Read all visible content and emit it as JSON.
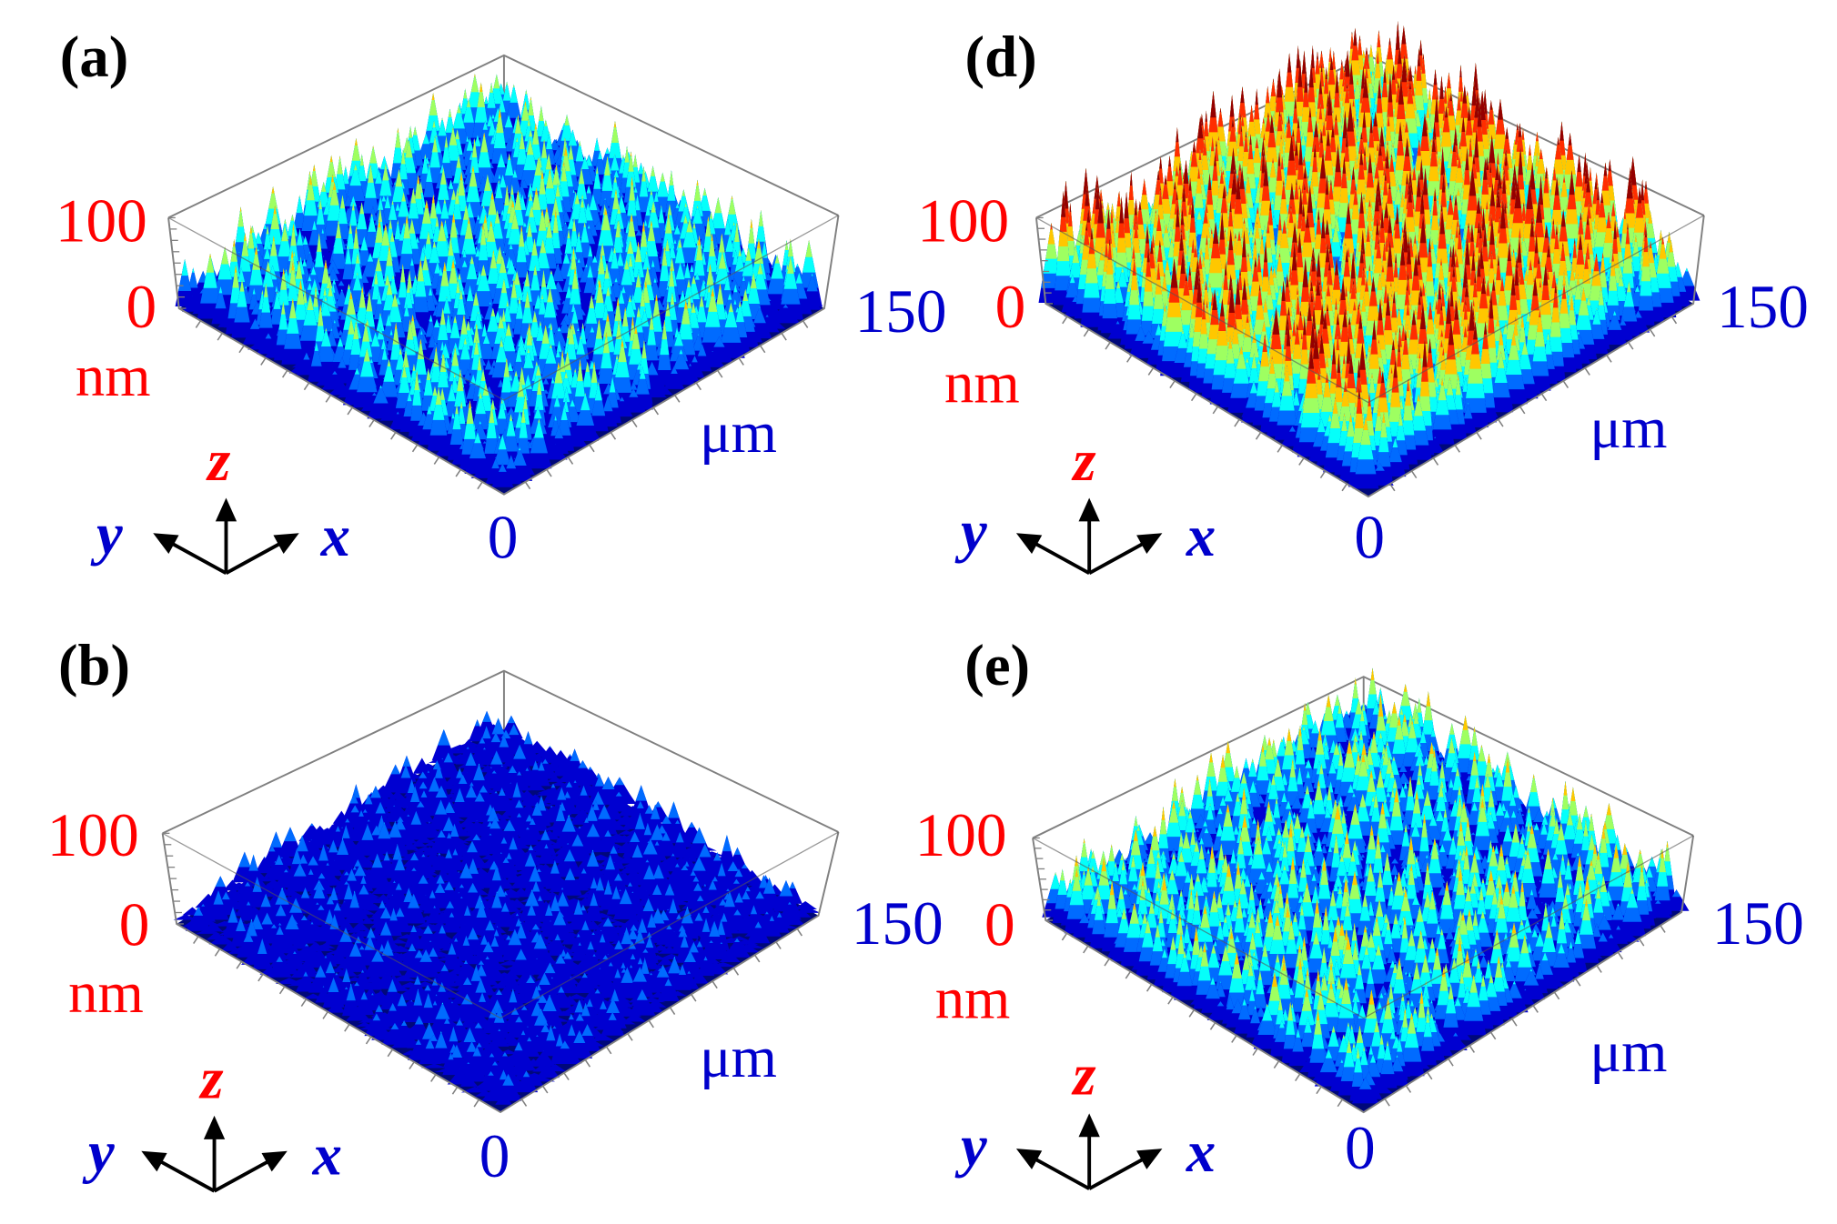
{
  "colors": {
    "z_text": "#ff0000",
    "xy_text": "#0000cc",
    "frame": "#808080",
    "arrows": "#000000"
  },
  "chart_data": {
    "type": "surface",
    "colormap": "jet",
    "panels": [
      {
        "label": "(a)",
        "z_ticks": [
          "100",
          "0"
        ],
        "z_unit": "nm",
        "xy_ticks": [
          "0",
          "150"
        ],
        "xy_unit": "μm",
        "axes": {
          "z": "z",
          "y": "y",
          "x": "x"
        },
        "zlim": [
          0,
          100
        ],
        "xylim": [
          0,
          150
        ],
        "roughness": 0.55
      },
      {
        "label": "(b)",
        "z_ticks": [
          "100",
          "0"
        ],
        "z_unit": "nm",
        "xy_ticks": [
          "0",
          "150"
        ],
        "xy_unit": "μm",
        "axes": {
          "z": "z",
          "y": "y",
          "x": "x"
        },
        "zlim": [
          0,
          100
        ],
        "xylim": [
          0,
          150
        ],
        "roughness": 0.25
      },
      {
        "label": "(d)",
        "z_ticks": [
          "100",
          "0"
        ],
        "z_unit": "nm",
        "xy_ticks": [
          "0",
          "150"
        ],
        "xy_unit": "μm",
        "axes": {
          "z": "z",
          "y": "y",
          "x": "x"
        },
        "zlim": [
          0,
          100
        ],
        "xylim": [
          0,
          150
        ],
        "roughness": 0.95
      },
      {
        "label": "(e)",
        "z_ticks": [
          "100",
          "0"
        ],
        "z_unit": "nm",
        "xy_ticks": [
          "0",
          "150"
        ],
        "xy_unit": "μm",
        "axes": {
          "z": "z",
          "y": "y",
          "x": "x"
        },
        "zlim": [
          0,
          100
        ],
        "xylim": [
          0,
          150
        ],
        "roughness": 0.6
      }
    ]
  }
}
